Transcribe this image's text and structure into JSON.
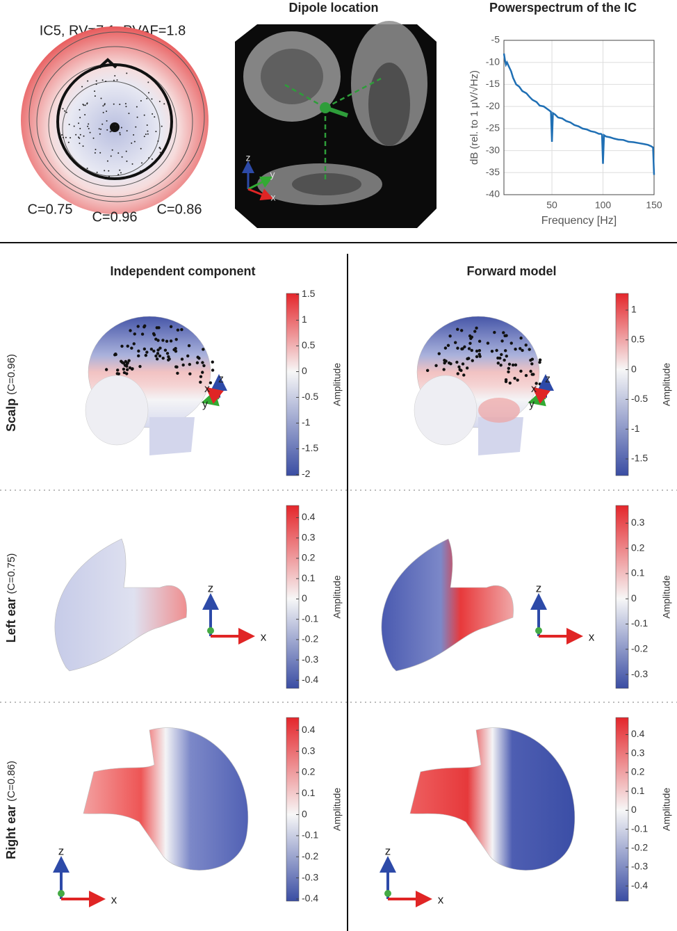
{
  "topoplot": {
    "title": "IC5, RV=7.1, PVAF=1.8",
    "labels": [
      "C=0.75",
      "C=0.96",
      "C=0.86"
    ]
  },
  "dipole": {
    "title": "Dipole location",
    "axes": [
      "z",
      "y",
      "x"
    ]
  },
  "columns": [
    "Independent component",
    "Forward model"
  ],
  "rows": [
    {
      "name": "Scalp",
      "corr": "(C=0.96)",
      "axes": [
        "x",
        "z",
        "y"
      ]
    },
    {
      "name": "Left ear",
      "corr": "(C=0.75)",
      "axes": [
        "z",
        "x"
      ]
    },
    {
      "name": "Right ear",
      "corr": "(C=0.86)",
      "axes": [
        "z",
        "x"
      ]
    }
  ],
  "chart_data": [
    {
      "type": "line",
      "title": "Powerspectrum of the IC",
      "xlabel": "Frequency [Hz]",
      "ylabel": "dB (rel. to 1 μV/√Hz)",
      "x": [
        3,
        4,
        5,
        6,
        8,
        10,
        12,
        15,
        18,
        21,
        25,
        28,
        31,
        35,
        38,
        42,
        45,
        48,
        49,
        50,
        51,
        53,
        56,
        60,
        64,
        68,
        72,
        76,
        80,
        84,
        88,
        92,
        96,
        98,
        99,
        100,
        101,
        103,
        107,
        111,
        115,
        120,
        125,
        130,
        135,
        140,
        144,
        147,
        149,
        150
      ],
      "values": [
        -8,
        -9.5,
        -10.5,
        -10,
        -11,
        -12,
        -13.5,
        -15,
        -15.5,
        -16.5,
        -17,
        -17.8,
        -18.5,
        -19,
        -19.8,
        -20,
        -20.5,
        -21,
        -21.2,
        -28,
        -21.5,
        -21.8,
        -22.5,
        -22.7,
        -23.3,
        -23.6,
        -24.2,
        -24.5,
        -25,
        -25.2,
        -25.6,
        -25.8,
        -26.2,
        -26.2,
        -26.4,
        -33,
        -26.5,
        -26.8,
        -27,
        -27.3,
        -27.5,
        -27.6,
        -28,
        -28.1,
        -28.3,
        -28.5,
        -28.7,
        -29,
        -29.3,
        -35.5
      ],
      "color": "#1f6fb4",
      "xlim": [
        3,
        150
      ],
      "ylim": [
        -40,
        -5
      ],
      "xticks": [
        50,
        100,
        150
      ],
      "yticks": [
        -40,
        -35,
        -30,
        -25,
        -20,
        -15,
        -10,
        -5
      ],
      "grid": true
    },
    {
      "type": "colorbar",
      "ylabel": "Amplitude",
      "ylim": [
        -2.02,
        1.52
      ],
      "yticks": [
        -2,
        -1.5,
        -1,
        -0.5,
        0,
        0.5,
        1,
        1.5
      ]
    },
    {
      "type": "colorbar",
      "ylabel": "Amplitude",
      "ylim": [
        -1.78,
        1.28
      ],
      "yticks": [
        -1.5,
        -1,
        -0.5,
        0,
        0.5,
        1
      ]
    },
    {
      "type": "colorbar",
      "ylabel": "Amplitude",
      "ylim": [
        -0.44,
        0.46
      ],
      "yticks": [
        -0.4,
        -0.3,
        -0.2,
        -0.1,
        0,
        0.1,
        0.2,
        0.3,
        0.4
      ]
    },
    {
      "type": "colorbar",
      "ylabel": "Amplitude",
      "ylim": [
        -0.355,
        0.37
      ],
      "yticks": [
        -0.3,
        -0.2,
        -0.1,
        0,
        0.1,
        0.2,
        0.3
      ]
    },
    {
      "type": "colorbar",
      "ylabel": "Amplitude",
      "ylim": [
        -0.41,
        0.46
      ],
      "yticks": [
        -0.4,
        -0.3,
        -0.2,
        -0.1,
        0,
        0.1,
        0.2,
        0.3,
        0.4
      ]
    },
    {
      "type": "colorbar",
      "ylabel": "Amplitude",
      "ylim": [
        -0.48,
        0.49
      ],
      "yticks": [
        -0.4,
        -0.3,
        -0.2,
        -0.1,
        0,
        0.1,
        0.2,
        0.3,
        0.4
      ]
    }
  ]
}
